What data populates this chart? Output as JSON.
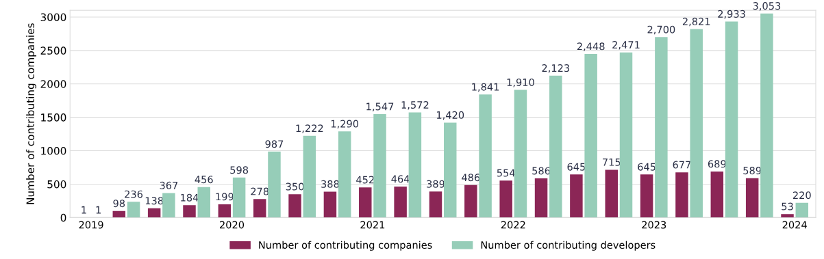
{
  "chart_data": {
    "type": "bar",
    "ylabel": "Number of contributing companies",
    "categories": [
      "2019",
      null,
      null,
      null,
      "2020",
      null,
      null,
      null,
      "2021",
      null,
      null,
      null,
      "2022",
      null,
      null,
      null,
      "2023",
      null,
      null,
      null,
      "2024"
    ],
    "series": [
      {
        "name": "Number of contributing companies",
        "color": "#8b2656",
        "values": [
          1,
          98,
          138,
          184,
          199,
          278,
          350,
          388,
          452,
          464,
          389,
          486,
          554,
          586,
          645,
          715,
          645,
          677,
          689,
          589,
          53
        ],
        "value_labels": [
          "1",
          "98",
          "138",
          "184",
          "199",
          "278",
          "350",
          "388",
          "452",
          "464",
          "389",
          "486",
          "554",
          "586",
          "645",
          "715",
          "645",
          "677",
          "689",
          "589",
          "53"
        ]
      },
      {
        "name": "Number of contributing developers",
        "color": "#96cdb8",
        "values": [
          1,
          236,
          367,
          456,
          598,
          987,
          1222,
          1290,
          1547,
          1572,
          1420,
          1841,
          1910,
          2123,
          2448,
          2471,
          2700,
          2821,
          2933,
          3053,
          220
        ],
        "value_labels": [
          "1",
          "236",
          "367",
          "456",
          "598",
          "987",
          "1,222",
          "1,290",
          "1,547",
          "1,572",
          "1,420",
          "1,841",
          "1,910",
          "2,123",
          "2,448",
          "2,471",
          "2,700",
          "2,821",
          "2,933",
          "3,053",
          "220"
        ]
      }
    ],
    "ylim": [
      0,
      3100
    ],
    "yticks": [
      0,
      500,
      1000,
      1500,
      2000,
      2500,
      3000
    ],
    "grid": "y",
    "legend": "bottom"
  }
}
